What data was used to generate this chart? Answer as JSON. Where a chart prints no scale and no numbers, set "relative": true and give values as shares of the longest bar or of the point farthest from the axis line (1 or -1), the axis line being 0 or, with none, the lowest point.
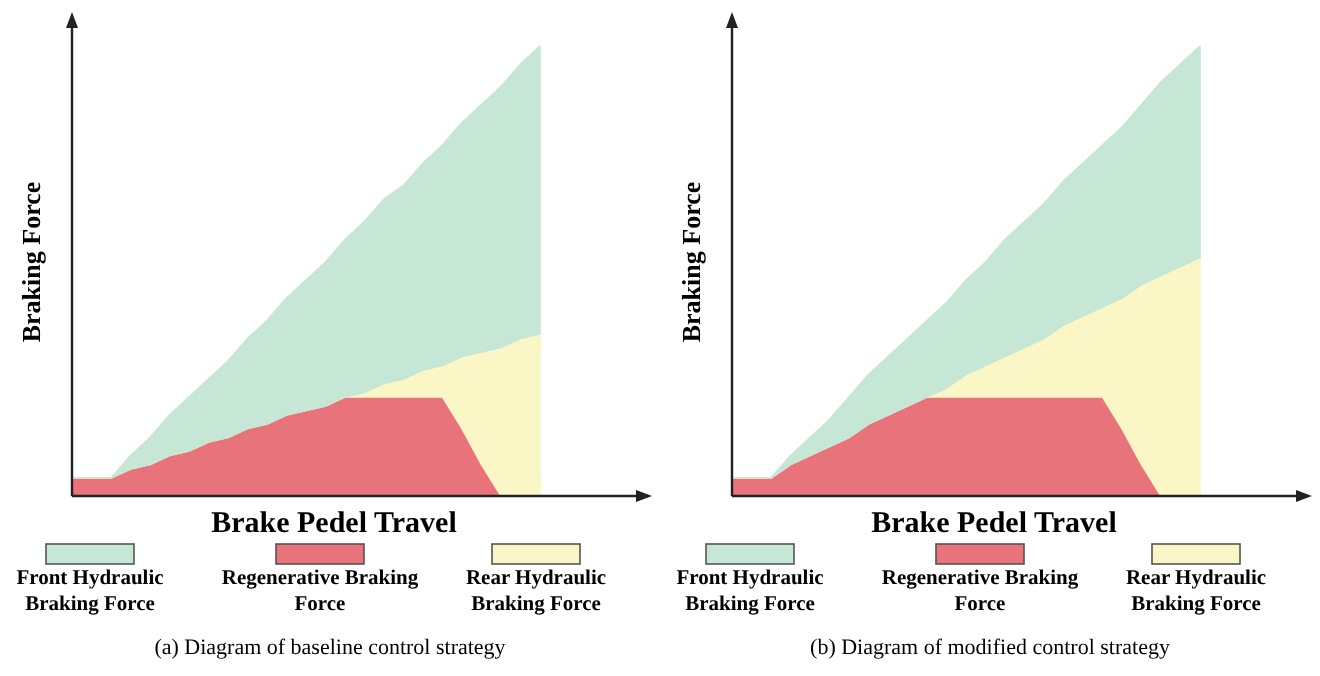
{
  "chart_data": [
    {
      "type": "area",
      "title": "(a)   Diagram of baseline control strategy",
      "xlabel": "Brake Pedel Travel",
      "ylabel": "Braking Force",
      "relative": true,
      "stacked": true,
      "legend": "bottom",
      "grid": false,
      "categories": [
        null,
        null,
        null,
        null,
        null,
        null,
        null,
        null,
        null,
        null,
        null,
        null,
        null,
        null,
        null,
        null,
        null,
        null,
        null,
        null,
        null,
        null,
        null,
        null,
        null
      ],
      "series": [
        {
          "name": "Regenerative Braking Force",
          "color": "#e9737b",
          "values": [
            0.04,
            0.04,
            0.04,
            0.06,
            0.07,
            0.09,
            0.1,
            0.12,
            0.13,
            0.15,
            0.16,
            0.18,
            0.19,
            0.2,
            0.22,
            0.22,
            0.22,
            0.22,
            0.22,
            0.22,
            0.15,
            0.07,
            0,
            0,
            0
          ]
        },
        {
          "name": "Rear Hydraulic Braking Force",
          "color": "#fbf6c6",
          "values": [
            0,
            0,
            0,
            0,
            0,
            0,
            0,
            0,
            0,
            0,
            0,
            0,
            0,
            0,
            0,
            0.01,
            0.03,
            0.04,
            0.06,
            0.07,
            0.16,
            0.25,
            0.33,
            0.35,
            0.36
          ]
        },
        {
          "name": "Front Hydraulic Braking Force",
          "color": "#c6e6d6",
          "values": [
            0,
            0,
            0,
            0.03,
            0.06,
            0.09,
            0.12,
            0.14,
            0.17,
            0.2,
            0.23,
            0.26,
            0.29,
            0.32,
            0.35,
            0.38,
            0.41,
            0.43,
            0.46,
            0.49,
            0.52,
            0.55,
            0.58,
            0.61,
            0.64
          ]
        }
      ]
    },
    {
      "type": "area",
      "title": "(b)   Diagram of modified control strategy",
      "xlabel": "Brake Pedel Travel",
      "ylabel": "Braking Force",
      "relative": true,
      "stacked": true,
      "legend": "bottom",
      "grid": false,
      "categories": [
        null,
        null,
        null,
        null,
        null,
        null,
        null,
        null,
        null,
        null,
        null,
        null,
        null,
        null,
        null,
        null,
        null,
        null,
        null,
        null,
        null,
        null,
        null,
        null,
        null
      ],
      "series": [
        {
          "name": "Regenerative Braking Force",
          "color": "#e9737b",
          "values": [
            0.04,
            0.04,
            0.04,
            0.07,
            0.09,
            0.11,
            0.13,
            0.16,
            0.18,
            0.2,
            0.22,
            0.22,
            0.22,
            0.22,
            0.22,
            0.22,
            0.22,
            0.22,
            0.22,
            0.22,
            0.15,
            0.07,
            0,
            0,
            0
          ]
        },
        {
          "name": "Rear Hydraulic Braking Force",
          "color": "#fbf6c6",
          "values": [
            0,
            0,
            0,
            0,
            0,
            0,
            0,
            0,
            0,
            0,
            0,
            0.02,
            0.05,
            0.07,
            0.09,
            0.11,
            0.13,
            0.16,
            0.18,
            0.2,
            0.29,
            0.4,
            0.49,
            0.51,
            0.53
          ]
        },
        {
          "name": "Front Hydraulic Braking Force",
          "color": "#c6e6d6",
          "values": [
            0,
            0,
            0,
            0.02,
            0.04,
            0.06,
            0.09,
            0.11,
            0.13,
            0.15,
            0.17,
            0.19,
            0.21,
            0.23,
            0.26,
            0.28,
            0.3,
            0.32,
            0.34,
            0.36,
            0.38,
            0.4,
            0.43,
            0.45,
            0.47
          ]
        }
      ]
    }
  ]
}
